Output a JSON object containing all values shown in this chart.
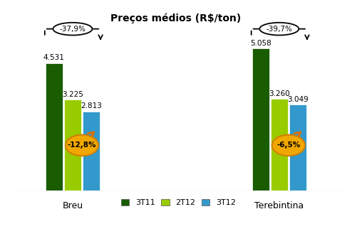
{
  "title": "Preços médios (R$/ton)",
  "groups": [
    "Breu",
    "Terebintina"
  ],
  "series": [
    "3T11",
    "2T12",
    "3T12"
  ],
  "values": {
    "Breu": [
      4531,
      3225,
      2813
    ],
    "Terebintina": [
      5058,
      3260,
      3049
    ]
  },
  "bar_colors": [
    "#1a5c00",
    "#99cc00",
    "#3399cc"
  ],
  "bar_width": 0.18,
  "ylim": [
    0,
    6400
  ],
  "value_labels": {
    "Breu": [
      "4.531",
      "3.225",
      "2.813"
    ],
    "Terebintina": [
      "5.058",
      "3.260",
      "3.049"
    ]
  },
  "top_annotations": {
    "Breu": "-37,9%",
    "Terebintina": "-39,7%"
  },
  "mid_annotations": {
    "Breu": "-12,8%",
    "Terebintina": "-6,5%"
  },
  "group_centers": [
    1.0,
    3.0
  ],
  "legend_labels": [
    "3T11",
    "2T12",
    "3T12"
  ],
  "legend_colors": [
    "#1a5c00",
    "#99cc00",
    "#3399cc"
  ]
}
